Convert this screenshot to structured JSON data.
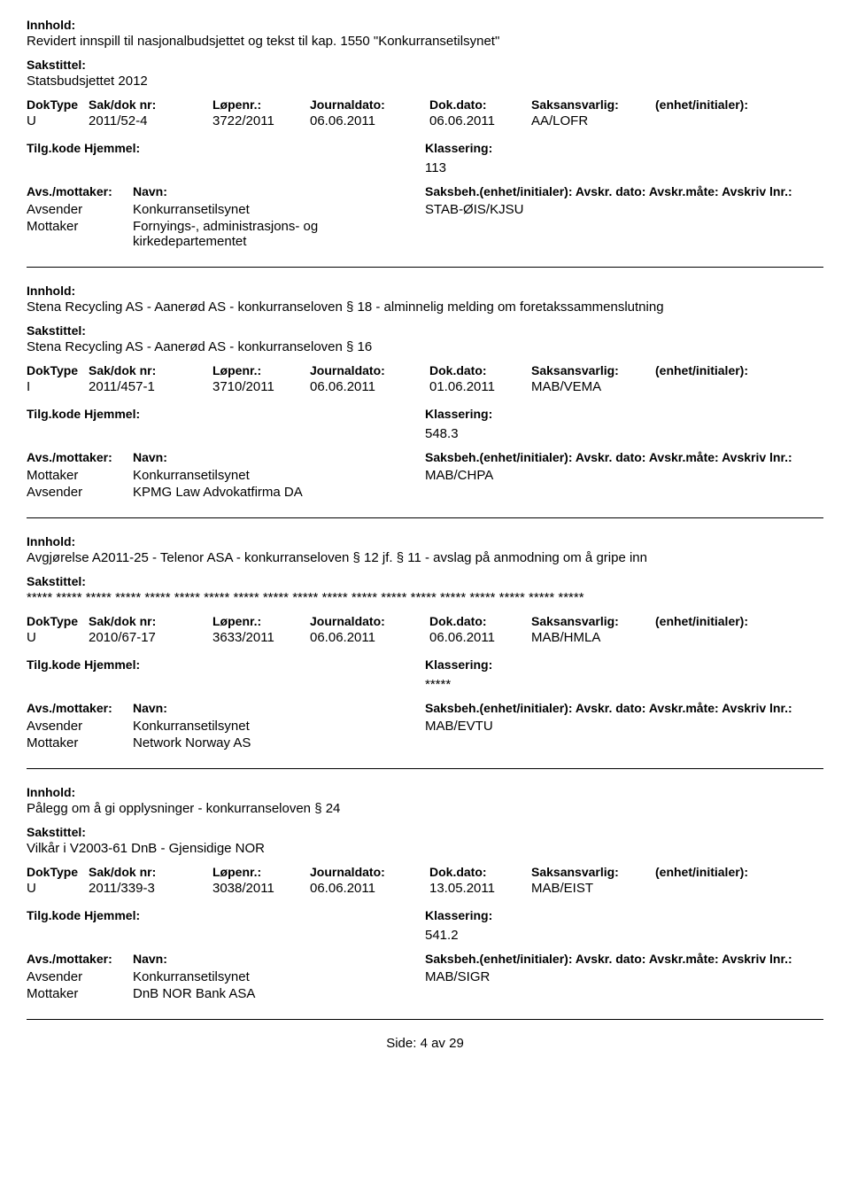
{
  "labels": {
    "innhold": "Innhold:",
    "sakstittel": "Sakstittel:",
    "doktype": "DokType",
    "sakdok": "Sak/dok nr:",
    "lopenr": "Løpenr.:",
    "journaldato": "Journaldato:",
    "dokdato": "Dok.dato:",
    "saksansvarlig": "Saksansvarlig:",
    "enhet": "(enhet/initialer):",
    "tilgkode": "Tilg.kode",
    "hjemmel": "Hjemmel:",
    "klassering": "Klassering:",
    "avsmottaker": "Avs./mottaker:",
    "navn": "Navn:",
    "saksbeh_line": "Saksbeh.(enhet/initialer): Avskr. dato: Avskr.måte: Avskriv lnr.:",
    "avsender": "Avsender",
    "mottaker": "Mottaker"
  },
  "records": [
    {
      "innhold": "Revidert innspill til nasjonalbudsjettet og tekst til kap. 1550 \"Konkurransetilsynet\"",
      "sakstittel": "Statsbudsjettet 2012",
      "doktype": "U",
      "sakdok": "2011/52-4",
      "lopenr": "3722/2011",
      "journaldato": "06.06.2011",
      "dokdato": "06.06.2011",
      "saksansvarlig": "AA/LOFR",
      "klassering": "113",
      "parties": [
        {
          "role": "Avsender",
          "name": "Konkurransetilsynet",
          "saksbeh": "STAB-ØIS/KJSU"
        },
        {
          "role": "Mottaker",
          "name": "Fornyings-, administrasjons- og kirkedepartementet",
          "saksbeh": ""
        }
      ]
    },
    {
      "innhold": "Stena Recycling AS - Aanerød AS - konkurranseloven § 18 - alminnelig melding om foretakssammenslutning",
      "sakstittel": "Stena Recycling AS - Aanerød AS - konkurranseloven § 16",
      "doktype": "I",
      "sakdok": "2011/457-1",
      "lopenr": "3710/2011",
      "journaldato": "06.06.2011",
      "dokdato": "01.06.2011",
      "saksansvarlig": "MAB/VEMA",
      "klassering": "548.3",
      "parties": [
        {
          "role": "Mottaker",
          "name": "Konkurransetilsynet",
          "saksbeh": "MAB/CHPA"
        },
        {
          "role": "Avsender",
          "name": "KPMG Law Advokatfirma DA",
          "saksbeh": ""
        }
      ]
    },
    {
      "innhold": "Avgjørelse A2011-25 - Telenor ASA - konkurranseloven § 12 jf. § 11 - avslag på anmodning om å gripe inn",
      "sakstittel": "***** ***** ***** ***** ***** ***** ***** ***** ***** ***** ***** ***** ***** ***** ***** ***** ***** ***** *****",
      "doktype": "U",
      "sakdok": "2010/67-17",
      "lopenr": "3633/2011",
      "journaldato": "06.06.2011",
      "dokdato": "06.06.2011",
      "saksansvarlig": "MAB/HMLA",
      "klassering": "*****",
      "parties": [
        {
          "role": "Avsender",
          "name": "Konkurransetilsynet",
          "saksbeh": "MAB/EVTU"
        },
        {
          "role": "Mottaker",
          "name": "Network Norway AS",
          "saksbeh": ""
        }
      ]
    },
    {
      "innhold": "Pålegg om å gi opplysninger - konkurranseloven § 24",
      "sakstittel": "Vilkår i V2003-61 DnB - Gjensidige NOR",
      "doktype": "U",
      "sakdok": "2011/339-3",
      "lopenr": "3038/2011",
      "journaldato": "06.06.2011",
      "dokdato": "13.05.2011",
      "saksansvarlig": "MAB/EIST",
      "klassering": "541.2",
      "parties": [
        {
          "role": "Avsender",
          "name": "Konkurransetilsynet",
          "saksbeh": "MAB/SIGR"
        },
        {
          "role": "Mottaker",
          "name": "DnB NOR Bank ASA",
          "saksbeh": ""
        }
      ]
    }
  ],
  "footer": {
    "prefix": "Side:",
    "current": "4",
    "sep": "av",
    "total": "29"
  }
}
